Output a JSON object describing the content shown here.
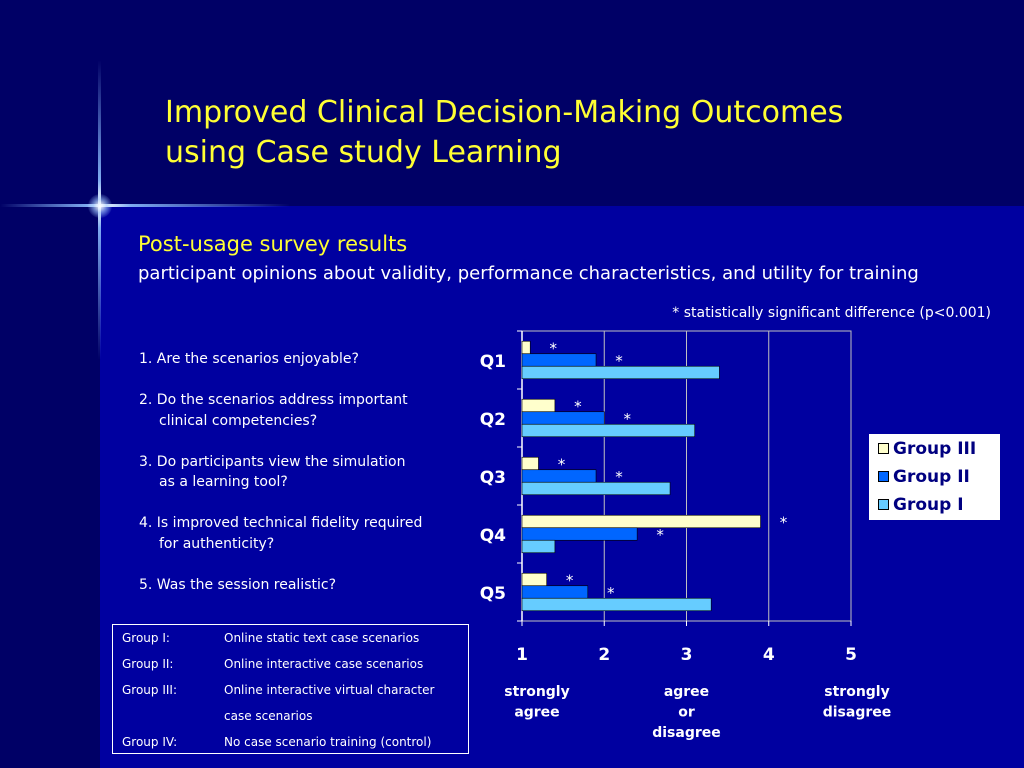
{
  "title_line1": "Improved Clinical Decision-Making Outcomes",
  "title_line2": "using Case study Learning",
  "subtitle": "Post-usage survey results",
  "subtitle_detail": "participant opinions about validity, performance characteristics, and utility for training",
  "footnote": "* statistically significant difference (p<0.001)",
  "questions": [
    {
      "line1": "1. Are the scenarios enjoyable?",
      "line2": ""
    },
    {
      "line1": "2. Do the scenarios address important",
      "line2": "clinical competencies?"
    },
    {
      "line1": "3. Do participants view the simulation",
      "line2": "as a learning tool?"
    },
    {
      "line1": "4. Is improved technical fidelity required",
      "line2": "for authenticity?"
    },
    {
      "line1": "5. Was the session realistic?",
      "line2": ""
    }
  ],
  "groups": [
    {
      "name": "Group I:",
      "desc": "Online static text case scenarios"
    },
    {
      "name": "Group II:",
      "desc": "Online interactive case scenarios"
    },
    {
      "name": "Group III:",
      "desc": "Online interactive virtual character"
    },
    {
      "name": "",
      "desc": "case scenarios"
    },
    {
      "name": "Group IV:",
      "desc": "No case scenario training (control)"
    }
  ],
  "colors": {
    "group_iii": "#ffffcc",
    "group_ii": "#0066ff",
    "group_i": "#66ccff",
    "background": "#0000a0",
    "band": "#000066",
    "title": "#ffff33"
  },
  "chart_data": {
    "type": "bar",
    "orientation": "horizontal",
    "categories": [
      "Q1",
      "Q2",
      "Q3",
      "Q4",
      "Q5"
    ],
    "series": [
      {
        "name": "Group III",
        "color": "#ffffcc",
        "values": [
          1.1,
          1.4,
          1.2,
          3.9,
          1.3
        ],
        "significant": [
          true,
          true,
          true,
          true,
          true
        ]
      },
      {
        "name": "Group II",
        "color": "#0066ff",
        "values": [
          1.9,
          2.0,
          1.9,
          2.4,
          1.8
        ],
        "significant": [
          true,
          true,
          true,
          true,
          true
        ]
      },
      {
        "name": "Group I",
        "color": "#66ccff",
        "values": [
          3.4,
          3.1,
          2.8,
          1.4,
          3.3
        ],
        "significant": [
          false,
          false,
          false,
          false,
          false
        ]
      }
    ],
    "xlim": [
      1,
      5
    ],
    "xticks": [
      "1",
      "2",
      "3",
      "4",
      "5"
    ],
    "gridlines": [
      2,
      3,
      4
    ],
    "significance_marker": "*",
    "scale_labels": [
      {
        "value": 1,
        "lines": [
          "strongly",
          "agree"
        ]
      },
      {
        "value": 3,
        "lines": [
          "agree",
          "or",
          "disagree"
        ]
      },
      {
        "value": 5,
        "lines": [
          "strongly",
          "disagree"
        ]
      }
    ],
    "legend": {
      "position": "right",
      "entries": [
        "Group III",
        "Group II",
        "Group I"
      ]
    }
  }
}
